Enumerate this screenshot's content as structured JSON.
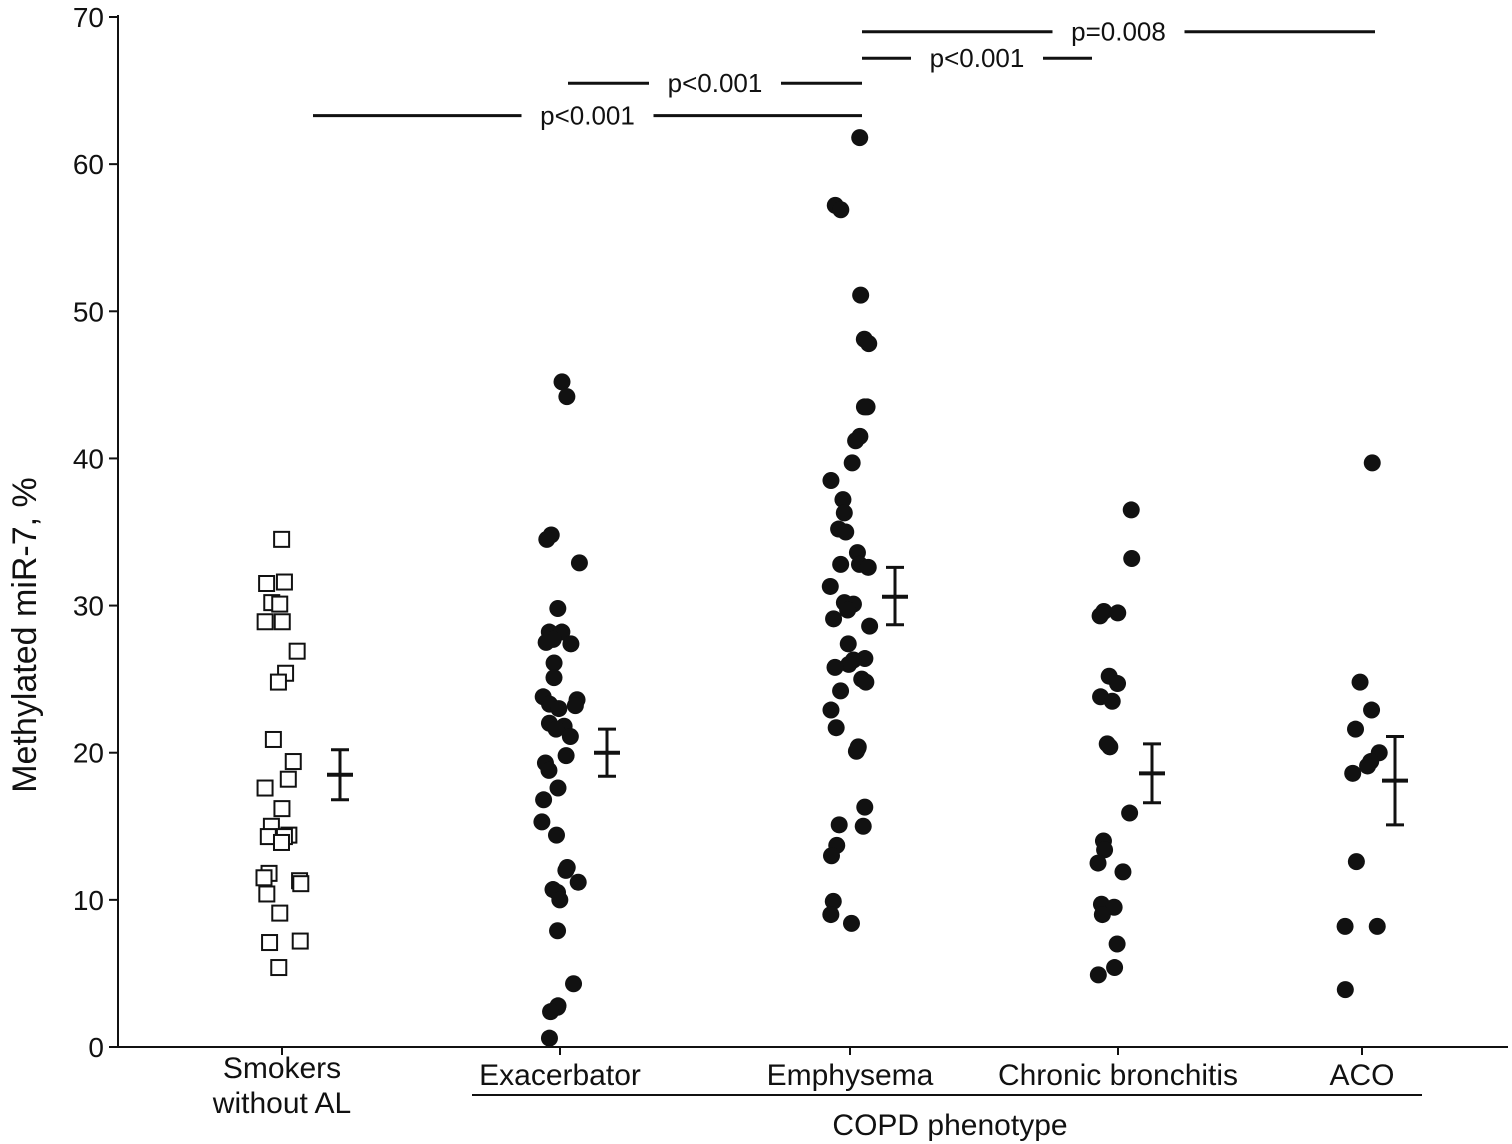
{
  "chart_data": {
    "type": "scatter",
    "title": "",
    "ylabel": "Methylated miR-7, %",
    "xlabel": "",
    "ylim": [
      0,
      70
    ],
    "yticks": [
      0,
      10,
      20,
      30,
      40,
      50,
      60,
      70
    ],
    "grid": false,
    "categories": [
      "Smokers\nwithout AL",
      "Exacerbator",
      "Emphysema",
      "Chronic bronchitis",
      "ACO"
    ],
    "category_lines": [
      [
        "Smokers",
        "without AL"
      ],
      [
        "Exacerbator"
      ],
      [
        "Emphysema"
      ],
      [
        "Chronic bronchitis"
      ],
      [
        "ACO"
      ]
    ],
    "group_label": "COPD phenotype",
    "group_categories": [
      1,
      4
    ],
    "colors": {
      "axis": "#111111",
      "points": "#111111",
      "open_marker_fill": "#ffffff"
    },
    "series": [
      {
        "category": 0,
        "marker": "open-square",
        "values": [
          34.5,
          31.6,
          31.5,
          30.2,
          30.1,
          28.9,
          28.9,
          26.9,
          25.4,
          24.8,
          20.9,
          19.4,
          18.2,
          17.6,
          16.2,
          15.0,
          14.4,
          14.3,
          14.3,
          13.9,
          11.8,
          11.5,
          11.3,
          11.1,
          10.4,
          9.1,
          7.2,
          7.1,
          5.4
        ],
        "mean": 18.5,
        "err": [
          16.8,
          20.2
        ]
      },
      {
        "category": 1,
        "marker": "filled-circle",
        "values": [
          45.2,
          44.2,
          34.8,
          34.5,
          32.9,
          29.8,
          28.2,
          28.2,
          27.7,
          27.5,
          27.4,
          26.1,
          25.1,
          23.8,
          23.6,
          23.3,
          23.2,
          23.0,
          22.0,
          21.8,
          21.6,
          21.1,
          19.8,
          19.3,
          18.8,
          17.6,
          16.8,
          15.3,
          14.4,
          12.2,
          12.0,
          11.2,
          10.7,
          10.5,
          10.0,
          7.9,
          4.3,
          2.8,
          2.7,
          2.4,
          0.6
        ],
        "mean": 20.0,
        "err": [
          18.4,
          21.6
        ]
      },
      {
        "category": 2,
        "marker": "filled-circle",
        "values": [
          61.8,
          57.2,
          56.9,
          51.1,
          48.1,
          47.8,
          43.5,
          43.5,
          41.5,
          41.2,
          39.7,
          38.5,
          37.2,
          36.3,
          35.2,
          35.0,
          33.6,
          32.8,
          32.8,
          32.6,
          31.3,
          30.2,
          30.1,
          29.7,
          29.1,
          28.6,
          27.4,
          26.4,
          26.3,
          26.0,
          25.8,
          25.0,
          24.8,
          24.2,
          22.9,
          21.7,
          20.4,
          20.3,
          20.1,
          16.3,
          15.1,
          15.0,
          13.7,
          13.0,
          9.9,
          9.0,
          8.4
        ],
        "mean": 30.6,
        "err": [
          28.7,
          32.6
        ]
      },
      {
        "category": 3,
        "marker": "filled-circle",
        "values": [
          36.5,
          33.2,
          29.6,
          29.5,
          29.3,
          25.2,
          24.7,
          23.8,
          23.5,
          20.6,
          20.4,
          15.9,
          14.0,
          13.4,
          12.5,
          11.9,
          9.7,
          9.5,
          9.0,
          7.0,
          5.4,
          4.9
        ],
        "mean": 18.6,
        "err": [
          16.6,
          20.6
        ]
      },
      {
        "category": 4,
        "marker": "filled-circle",
        "values": [
          39.7,
          24.8,
          22.9,
          21.6,
          20.0,
          19.4,
          19.1,
          18.6,
          12.6,
          8.2,
          8.2,
          3.9
        ],
        "mean": 18.1,
        "err": [
          15.1,
          21.1
        ]
      }
    ],
    "annotations": [
      {
        "text": "p<0.001",
        "from": 0,
        "to": 2,
        "level": 63.3
      },
      {
        "text": "p<0.001",
        "from": 1,
        "to": 2,
        "level": 65.5
      },
      {
        "text": "p<0.001",
        "from": 2,
        "to": 3,
        "level": 67.2
      },
      {
        "text": "p=0.008",
        "from": 2,
        "to": 4,
        "level": 69.0
      }
    ]
  }
}
